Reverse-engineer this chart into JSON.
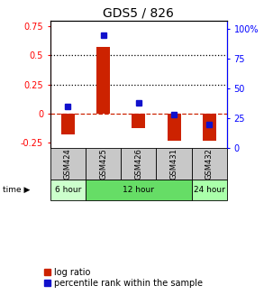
{
  "title": "GDS5 / 826",
  "samples": [
    "GSM424",
    "GSM425",
    "GSM426",
    "GSM431",
    "GSM432"
  ],
  "log_ratios": [
    -0.18,
    0.57,
    -0.13,
    -0.235,
    -0.235
  ],
  "percentile_ranks": [
    35,
    95,
    38,
    28,
    20
  ],
  "ylim_left": [
    -0.3,
    0.8
  ],
  "ylim_right": [
    0,
    107
  ],
  "yticks_left": [
    -0.25,
    0,
    0.25,
    0.5,
    0.75
  ],
  "ytick_labels_left": [
    "-0.25",
    "0",
    "0.25",
    "0.5",
    "0.75"
  ],
  "yticks_right": [
    0,
    25,
    50,
    75,
    100
  ],
  "ytick_labels_right": [
    "0",
    "25",
    "50",
    "75",
    "100%"
  ],
  "hlines_dotted": [
    0.25,
    0.5
  ],
  "hline_dashed": 0,
  "bar_color": "#cc2200",
  "dot_color": "#1111cc",
  "time_groups": [
    {
      "label": "6 hour",
      "samples_idx": [
        0
      ],
      "color": "#ccffcc"
    },
    {
      "label": "12 hour",
      "samples_idx": [
        1,
        2,
        3
      ],
      "color": "#66dd66"
    },
    {
      "label": "24 hour",
      "samples_idx": [
        4
      ],
      "color": "#aaffaa"
    }
  ],
  "sample_box_color": "#c8c8c8",
  "title_fontsize": 10,
  "axis_fontsize": 7,
  "legend_fontsize": 7,
  "tick_fontsize": 7
}
